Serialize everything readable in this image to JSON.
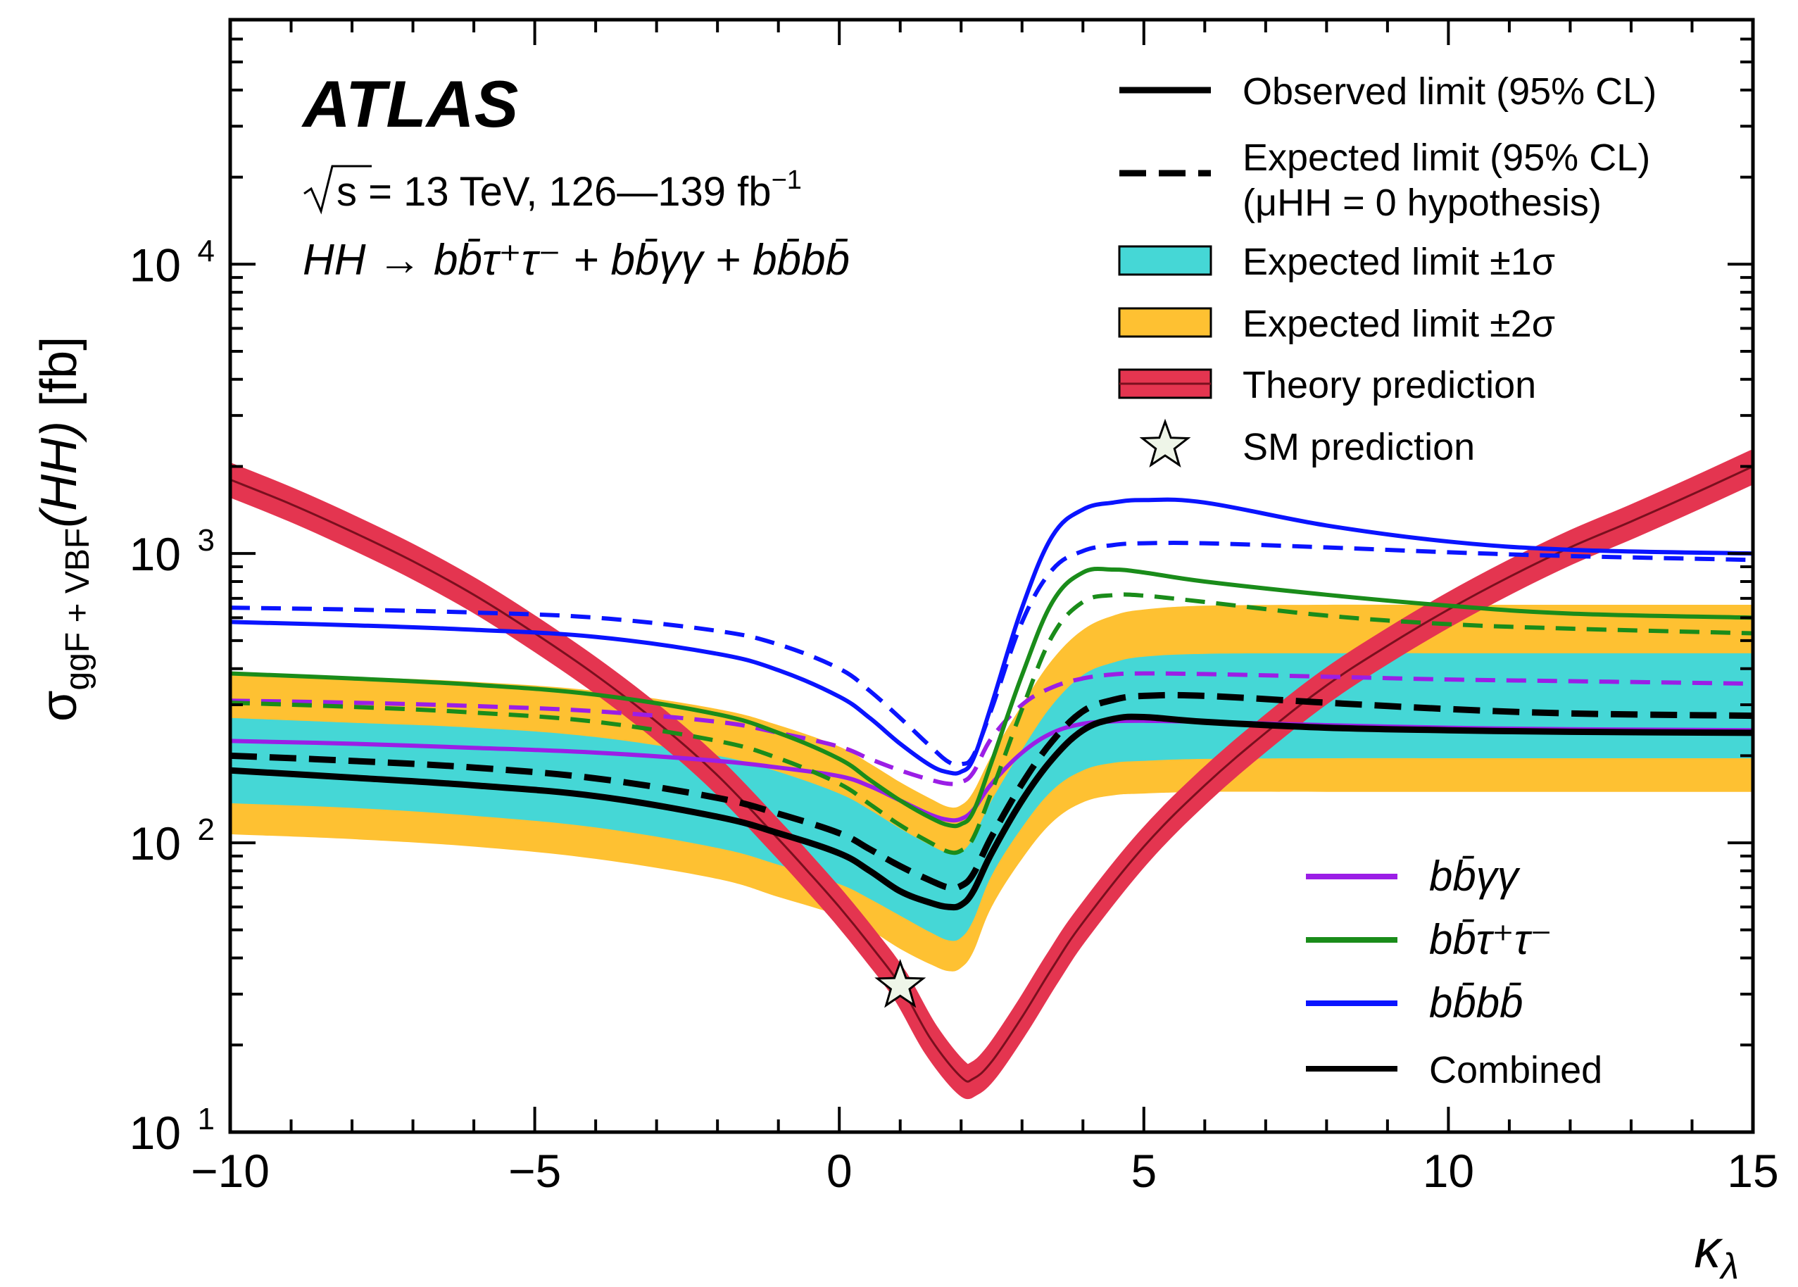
{
  "chart_data": {
    "type": "line",
    "title": "",
    "xlabel": "κλ",
    "ylabel": "σggF + VBF(HH) [fb]",
    "y_scale": "log",
    "xlim": [
      -10,
      15
    ],
    "ylim": [
      10,
      70000
    ],
    "x_ticks": [
      -10,
      -5,
      0,
      5,
      10,
      15
    ],
    "x_tick_labels": [
      "−10",
      "−5",
      "0",
      "5",
      "10",
      "15"
    ],
    "y_ticks": [
      10,
      100,
      1000,
      10000
    ],
    "y_tick_labels": [
      {
        "base": "10",
        "exp": "1"
      },
      {
        "base": "10",
        "exp": "2"
      },
      {
        "base": "10",
        "exp": "3"
      },
      {
        "base": "10",
        "exp": "4"
      }
    ],
    "annotations": {
      "experiment": "ATLAS",
      "energy_sqrt": "s",
      "energy_rest": " = 13 TeV, 126—139 fb",
      "energy_sup": "−1",
      "channels": "HH → bb̄τ⁺τ⁻ + bb̄γγ + bb̄bb̄"
    },
    "legend_main": {
      "placement": "top-right",
      "entries": [
        {
          "label": "Observed limit (95% CL)",
          "style": "solid"
        },
        {
          "label": "Expected limit (95% CL)",
          "label2": "(μHH = 0 hypothesis)",
          "style": "dashed"
        },
        {
          "label": "Expected limit ±1σ",
          "style": "band1"
        },
        {
          "label": "Expected limit ±2σ",
          "style": "band2"
        },
        {
          "label": "Theory prediction",
          "style": "theory"
        },
        {
          "label": "SM prediction",
          "style": "star"
        }
      ]
    },
    "legend_channels": {
      "placement": "bottom-right",
      "entries": [
        {
          "label": "bb̄γγ",
          "color": "#9b1ee6"
        },
        {
          "label": "bb̄τ⁺τ⁻",
          "color": "#1a8c1a"
        },
        {
          "label": "bb̄bb̄",
          "color": "#0a14ff"
        },
        {
          "label": "Combined",
          "color": "#000000"
        }
      ]
    },
    "colors": {
      "band1": "#45d7d6",
      "band2": "#fec132",
      "theory": "#e43550",
      "theory_line": "#7a0f1e",
      "bbyy": "#9b1ee6",
      "bbtautau": "#1a8c1a",
      "bbbb": "#0a14ff",
      "combined": "#000000",
      "star_fill": "#eef5e8"
    },
    "x": [
      -10,
      -8,
      -6,
      -4,
      -2,
      -1,
      0,
      0.5,
      1,
      1.5,
      1.8,
      2,
      2.2,
      2.5,
      3,
      3.5,
      4,
      4.5,
      5,
      6,
      8,
      10,
      12,
      15
    ],
    "band2_low": [
      107,
      103,
      97,
      88,
      75,
      65,
      56,
      50,
      43,
      38,
      36,
      37,
      42,
      60,
      88,
      118,
      138,
      146,
      148,
      150,
      150,
      150,
      150,
      150
    ],
    "band2_high": [
      390,
      375,
      360,
      335,
      290,
      255,
      215,
      188,
      162,
      142,
      133,
      135,
      150,
      200,
      300,
      430,
      545,
      610,
      640,
      660,
      665,
      665,
      665,
      665
    ],
    "band1_low": [
      137,
      132,
      124,
      113,
      96,
      84,
      72,
      64,
      56,
      49,
      46,
      47,
      54,
      77,
      113,
      152,
      178,
      189,
      192,
      195,
      196,
      196,
      196,
      196
    ],
    "band1_high": [
      270,
      260,
      250,
      232,
      200,
      176,
      148,
      130,
      112,
      98,
      92,
      93,
      104,
      140,
      210,
      300,
      380,
      420,
      440,
      450,
      452,
      452,
      452,
      452
    ],
    "series": [
      {
        "name": "Observed limit (95% CL)",
        "channel": "Combined",
        "style": "solid",
        "values": [
          178,
          168,
          158,
          145,
          123,
          108,
          92,
          80,
          68,
          62,
          60,
          61,
          68,
          92,
          140,
          195,
          245,
          268,
          272,
          262,
          250,
          245,
          242,
          240
        ]
      },
      {
        "name": "Expected limit (95% CL)",
        "channel": "Combined",
        "style": "dashed",
        "values": [
          200,
          192,
          182,
          167,
          143,
          126,
          108,
          95,
          83,
          74,
          70,
          71,
          78,
          105,
          160,
          225,
          285,
          312,
          322,
          322,
          305,
          290,
          280,
          275
        ]
      },
      {
        "name": "bb̄γγ",
        "channel": "bbyy",
        "style": "solid",
        "values": [
          225,
          220,
          213,
          205,
          192,
          182,
          170,
          157,
          140,
          125,
          120,
          121,
          130,
          160,
          205,
          240,
          258,
          263,
          264,
          262,
          255,
          250,
          247,
          245
        ]
      },
      {
        "name": "bb̄γγ",
        "channel": "bbyy",
        "style": "dashed",
        "values": [
          310,
          305,
          297,
          285,
          262,
          240,
          215,
          195,
          178,
          165,
          160,
          162,
          175,
          230,
          300,
          345,
          370,
          382,
          385,
          383,
          375,
          367,
          362,
          355
        ]
      },
      {
        "name": "bb̄τ⁺τ⁻",
        "channel": "bbtautau",
        "style": "solid",
        "values": [
          385,
          370,
          352,
          325,
          278,
          240,
          195,
          165,
          140,
          122,
          115,
          116,
          128,
          190,
          380,
          680,
          860,
          880,
          860,
          800,
          720,
          660,
          620,
          600
        ]
      },
      {
        "name": "bb̄τ⁺τ⁻",
        "channel": "bbtautau",
        "style": "dashed",
        "values": [
          305,
          295,
          282,
          262,
          225,
          196,
          160,
          136,
          115,
          100,
          93,
          94,
          104,
          150,
          290,
          520,
          680,
          718,
          715,
          680,
          610,
          570,
          550,
          530
        ]
      },
      {
        "name": "bb̄bb̄",
        "channel": "bbbb",
        "style": "solid",
        "values": [
          580,
          565,
          545,
          515,
          450,
          395,
          320,
          270,
          220,
          185,
          175,
          176,
          195,
          300,
          650,
          1150,
          1420,
          1500,
          1530,
          1500,
          1250,
          1100,
          1030,
          1000
        ]
      },
      {
        "name": "bb̄bb̄",
        "channel": "bbbb",
        "style": "dashed",
        "values": [
          650,
          640,
          625,
          600,
          540,
          485,
          400,
          335,
          270,
          215,
          190,
          187,
          200,
          290,
          580,
          880,
          1020,
          1070,
          1085,
          1085,
          1050,
          1010,
          980,
          950
        ]
      }
    ],
    "theory": {
      "x": [
        -10,
        -9,
        -8,
        -7,
        -6,
        -5,
        -4,
        -3,
        -2,
        -1,
        -0.5,
        0,
        0.5,
        1,
        1.5,
        2,
        2.2,
        2.5,
        3,
        3.5,
        4,
        5,
        6,
        7,
        8,
        9,
        10,
        11,
        12,
        13,
        14,
        15
      ],
      "values": [
        1800,
        1480,
        1190,
        940,
        720,
        530,
        380,
        262,
        171,
        103,
        79,
        60,
        44.5,
        32.2,
        21,
        15.5,
        15.3,
        17.5,
        25,
        37,
        53,
        97,
        158,
        240,
        350,
        480,
        640,
        830,
        1050,
        1290,
        1600,
        2000
      ],
      "band_rel": 0.08
    },
    "sm_point": {
      "x": 1,
      "y": 32
    }
  }
}
